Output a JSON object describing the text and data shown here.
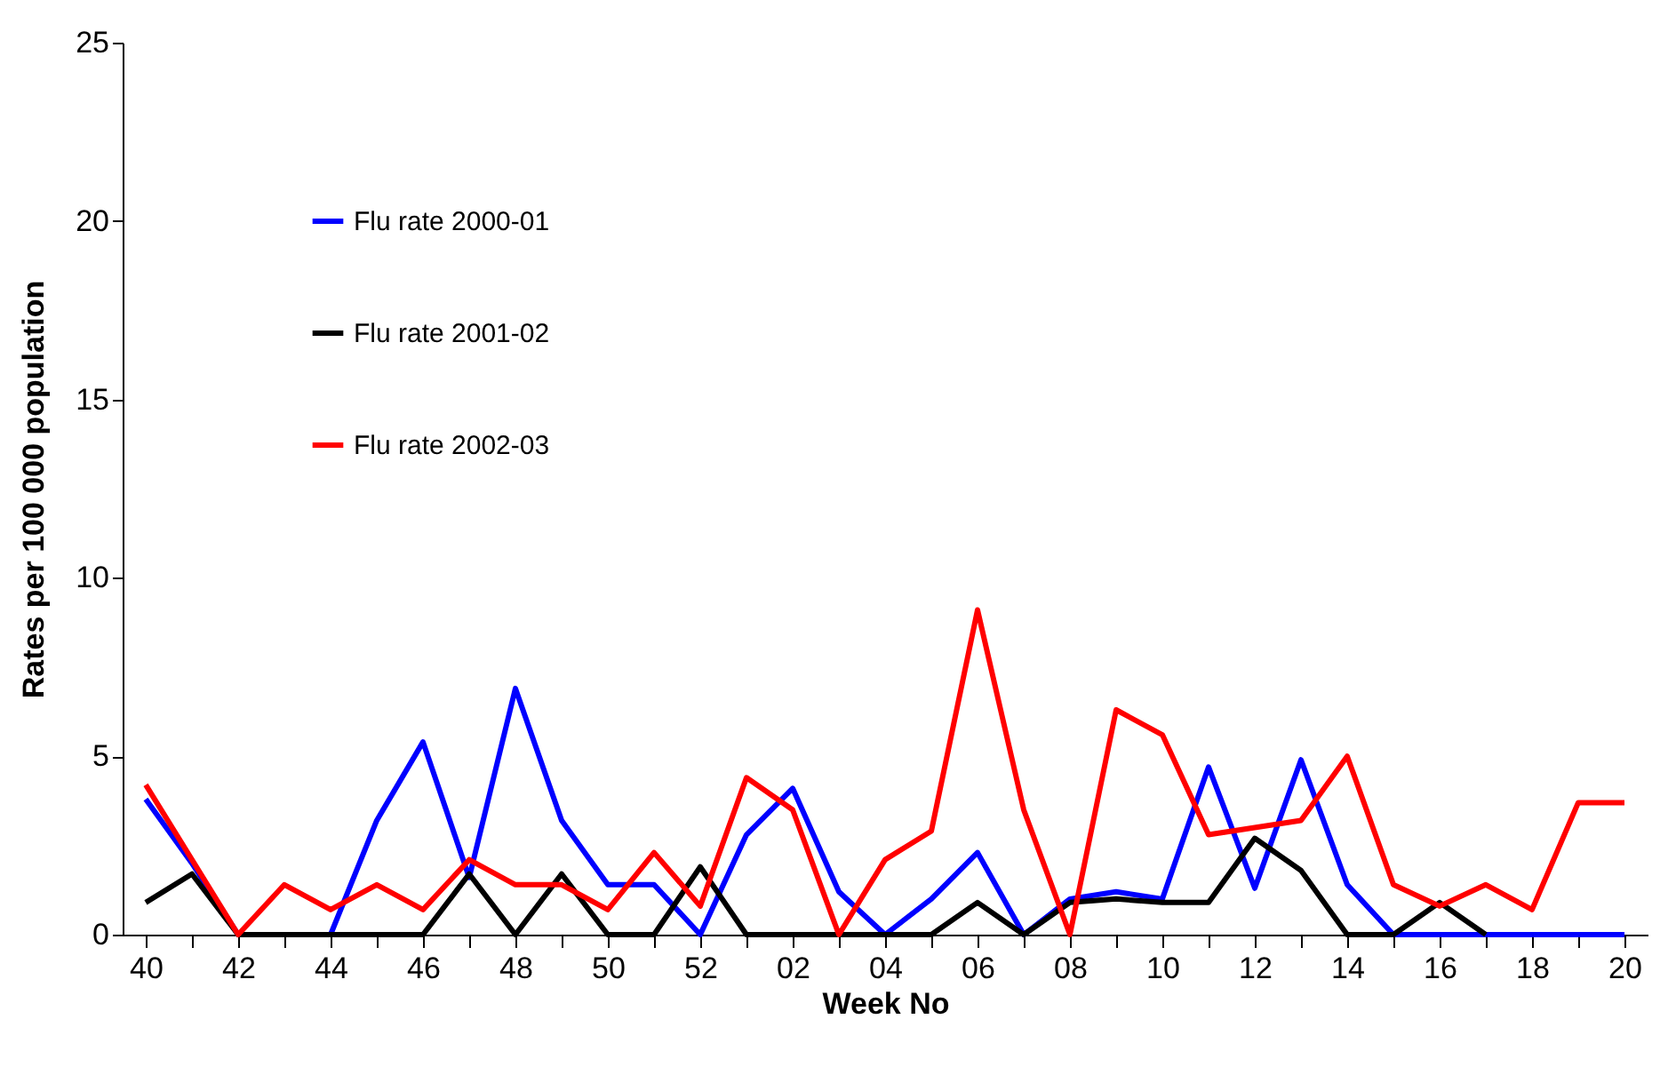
{
  "chart_data": {
    "type": "line",
    "xlabel": "Week No",
    "ylabel": "Rates per 100 000 population",
    "categories": [
      "40",
      null,
      "42",
      null,
      "44",
      null,
      "46",
      null,
      "48",
      null,
      "50",
      null,
      "52",
      null,
      "02",
      null,
      "04",
      null,
      "06",
      null,
      "08",
      null,
      "10",
      null,
      "12",
      null,
      "14",
      null,
      "16",
      null,
      "18",
      null,
      "20"
    ],
    "series": [
      {
        "name": "Flu rate 2000-01",
        "color": "#0000ff",
        "values": [
          3.8,
          2.0,
          0,
          0,
          0,
          3.2,
          5.4,
          1.6,
          6.9,
          3.2,
          1.4,
          1.4,
          0,
          2.8,
          4.1,
          1.2,
          0,
          1.0,
          2.3,
          0,
          1.0,
          1.2,
          1.0,
          4.7,
          1.3,
          4.9,
          1.4,
          0,
          0,
          0,
          0,
          0,
          0
        ]
      },
      {
        "name": "Flu rate 2001-02",
        "color": "#000000",
        "values": [
          0.9,
          1.7,
          0,
          0,
          0,
          0,
          0,
          1.7,
          0,
          1.7,
          0,
          0,
          1.9,
          0,
          0,
          0,
          0,
          0,
          0.9,
          0,
          0.9,
          1.0,
          0.9,
          0.9,
          2.7,
          1.8,
          0,
          0,
          0.9,
          0,
          null,
          null,
          null
        ]
      },
      {
        "name": "Flu rate 2002-03",
        "color": "#ff0000",
        "values": [
          4.2,
          2.1,
          0,
          1.4,
          0.7,
          1.4,
          0.7,
          2.1,
          1.4,
          1.4,
          0.7,
          2.3,
          0.8,
          4.4,
          3.5,
          0,
          2.1,
          2.9,
          9.1,
          3.5,
          0,
          6.3,
          5.6,
          2.8,
          3.0,
          3.2,
          5.0,
          1.4,
          0.8,
          1.4,
          0.7,
          3.7,
          3.7
        ]
      }
    ],
    "ylim": [
      0,
      25
    ],
    "yticks": [
      0,
      5,
      10,
      15,
      20,
      25
    ],
    "grid": false,
    "legend": "top left"
  }
}
